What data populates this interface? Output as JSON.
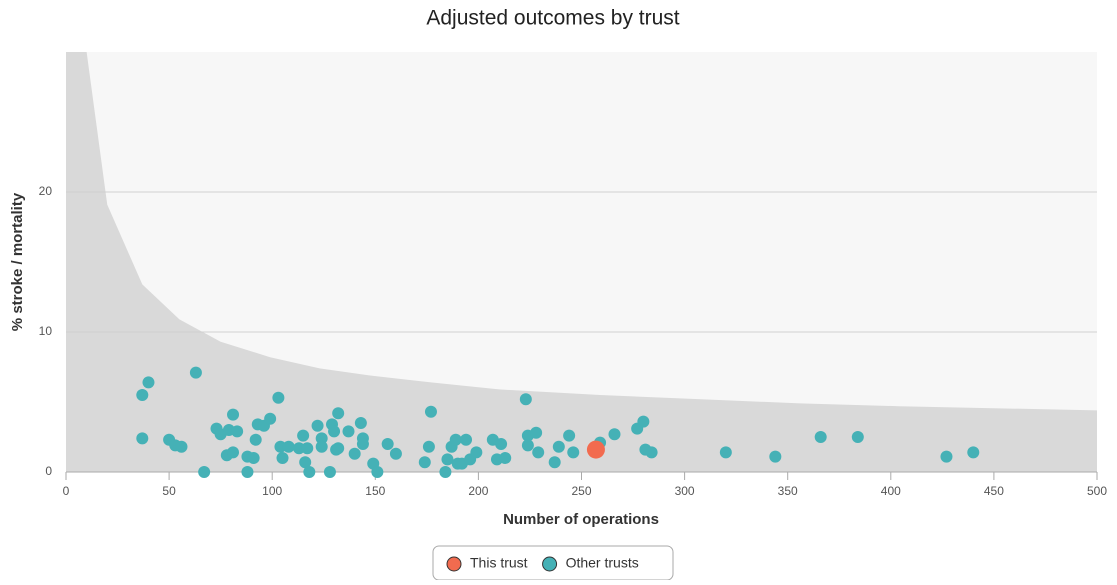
{
  "chart_data": {
    "type": "scatter",
    "title": "Adjusted outcomes by trust",
    "xlabel": "Number of operations",
    "ylabel": "% stroke / mortality",
    "xlim": [
      0,
      500
    ],
    "ylim": [
      0,
      30
    ],
    "xticks": [
      0,
      50,
      100,
      150,
      200,
      250,
      300,
      350,
      400,
      450,
      500
    ],
    "yticks": [
      0,
      10,
      20
    ],
    "grid": true,
    "legend": "bottom",
    "funnel": {
      "color": "#d9d9d9",
      "x": [
        10,
        20,
        37,
        55,
        75,
        99,
        123,
        147,
        177,
        210,
        259,
        308,
        356,
        404,
        500
      ],
      "upper": [
        30,
        19.1,
        13.4,
        10.9,
        9.3,
        8.2,
        7.4,
        6.9,
        6.4,
        5.9,
        5.5,
        5.2,
        4.9,
        4.7,
        4.4
      ]
    },
    "series": [
      {
        "name": "This trust",
        "color": "#f26b4f",
        "x": [
          257
        ],
        "values": [
          1.6
        ]
      },
      {
        "name": "Other trusts",
        "color": "#45b1b6",
        "x": [
          37,
          40,
          37,
          63,
          50,
          53,
          56,
          67,
          73,
          75,
          79,
          81,
          83,
          78,
          81,
          88,
          88,
          91,
          92,
          93,
          96,
          99,
          103,
          104,
          105,
          108,
          115,
          113,
          116,
          117,
          118,
          122,
          124,
          124,
          128,
          129,
          130,
          131,
          132,
          132,
          137,
          140,
          143,
          144,
          144,
          149,
          151,
          156,
          160,
          174,
          176,
          177,
          184,
          185,
          187,
          189,
          190,
          192,
          194,
          196,
          199,
          207,
          209,
          211,
          213,
          223,
          224,
          224,
          228,
          229,
          237,
          239,
          244,
          246,
          259,
          266,
          277,
          280,
          281,
          284,
          320,
          344,
          366,
          384,
          427,
          440
        ],
        "values": [
          5.5,
          6.4,
          2.4,
          7.1,
          2.3,
          1.9,
          1.8,
          0,
          3.1,
          2.7,
          3.0,
          4.1,
          2.9,
          1.2,
          1.4,
          1.1,
          0,
          1.0,
          2.3,
          3.4,
          3.3,
          3.8,
          5.3,
          1.8,
          1.0,
          1.8,
          2.6,
          1.7,
          0.7,
          1.7,
          0,
          3.3,
          2.4,
          1.8,
          0,
          3.4,
          2.9,
          1.6,
          4.2,
          1.7,
          2.9,
          1.3,
          3.5,
          2.4,
          2.0,
          0.6,
          0,
          2.0,
          1.3,
          0.7,
          1.8,
          4.3,
          0,
          0.9,
          1.8,
          2.3,
          0.6,
          0.6,
          2.3,
          0.9,
          1.4,
          2.3,
          0.9,
          2.0,
          1.0,
          5.2,
          2.6,
          1.9,
          2.8,
          1.4,
          0.7,
          1.8,
          2.6,
          1.4,
          2.1,
          2.7,
          3.1,
          3.6,
          1.6,
          1.4,
          1.4,
          1.1,
          2.5,
          2.5,
          1.1,
          1.4
        ]
      }
    ]
  }
}
